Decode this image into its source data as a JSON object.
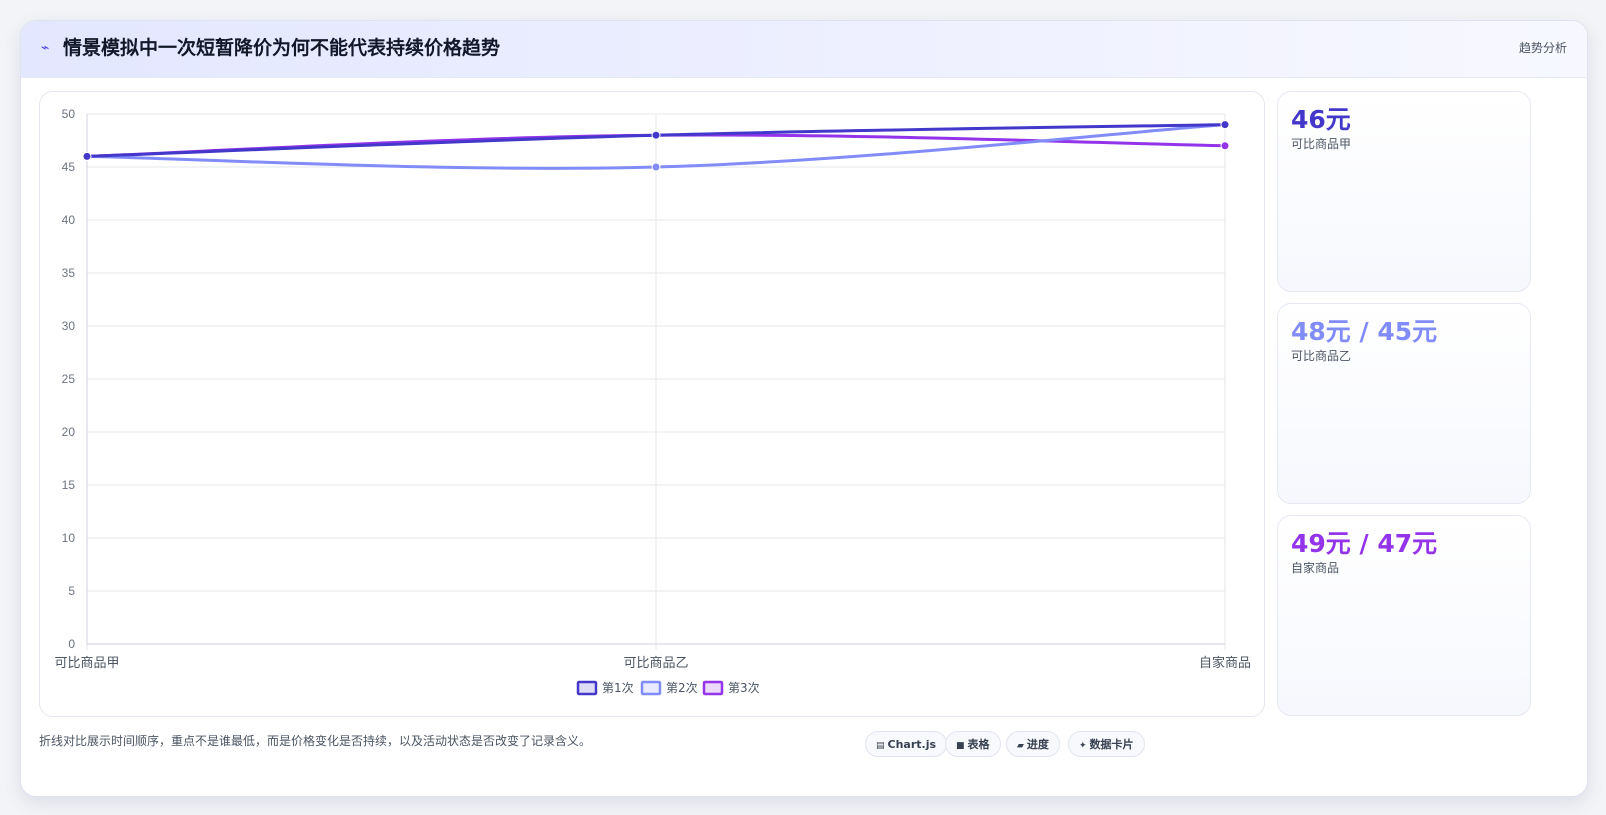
{
  "header": {
    "icon": "lightning-icon",
    "title": "情景模拟中一次短暂降价为何不能代表持续价格趋势",
    "tag": "趋势分析"
  },
  "chart_data": {
    "type": "line",
    "categories": [
      "可比商品甲",
      "可比商品乙",
      "自家商品"
    ],
    "series": [
      {
        "name": "第1次",
        "color": "#4338ca",
        "values": [
          46,
          48,
          49
        ]
      },
      {
        "name": "第2次",
        "color": "#818cf8",
        "values": [
          46,
          45,
          49
        ]
      },
      {
        "name": "第3次",
        "color": "#9333ea",
        "values": [
          46,
          48,
          47
        ]
      }
    ],
    "yticks": [
      0,
      5,
      10,
      15,
      20,
      25,
      30,
      35,
      40,
      45,
      50
    ],
    "ylim": [
      0,
      50
    ],
    "grid": true,
    "legend": "bottom"
  },
  "side_cards": [
    {
      "value": "46元",
      "label": "可比商品甲",
      "color": "#4338ca"
    },
    {
      "value": "48元 / 45元",
      "label": "可比商品乙",
      "color": "#818cf8"
    },
    {
      "value": "49元 / 47元",
      "label": "自家商品",
      "color": "#9333ea"
    }
  ],
  "footer": {
    "note": "折线对比展示时间顺序，重点不是谁最低，而是价格变化是否持续，以及活动状态是否改变了记录含义。",
    "pills": [
      {
        "icon": "chart-icon",
        "label": "Chart.js"
      },
      {
        "icon": "table-icon",
        "label": "表格"
      },
      {
        "icon": "progress-icon",
        "label": "进度"
      },
      {
        "icon": "sparkle-icon",
        "label": "数据卡片"
      }
    ]
  }
}
